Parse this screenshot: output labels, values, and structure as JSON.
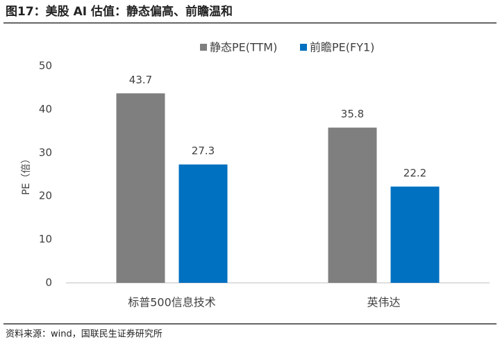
{
  "chart_data": {
    "type": "bar",
    "title": "图17：美股 AI 估值：静态偏高、前瞻温和",
    "source": "资料来源：wind，国联民生证券研究所",
    "y_label": "PE（倍）",
    "categories": [
      "标普500信息技术",
      "英伟达"
    ],
    "series": [
      {
        "name": "静态PE(TTM)",
        "color": "#7f7f7f",
        "values": [
          43.7,
          35.8
        ]
      },
      {
        "name": "前瞻PE(FY1)",
        "color": "#0070c0",
        "values": [
          27.3,
          22.2
        ]
      }
    ],
    "ylim": [
      0,
      50
    ],
    "yticks": [
      0,
      10,
      20,
      30,
      40,
      50
    ],
    "grid": false,
    "legend": "top"
  }
}
